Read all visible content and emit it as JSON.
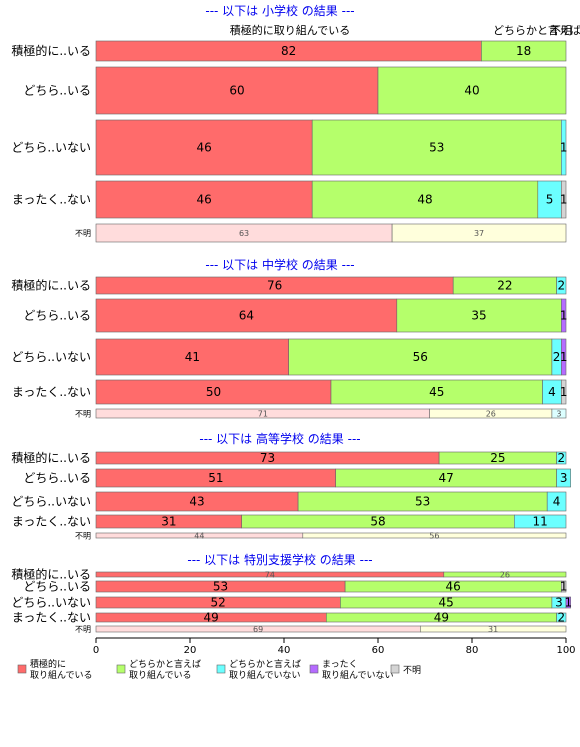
{
  "chart_data": {
    "type": "bar",
    "orientation": "horizontal-stacked-100",
    "x_ticks": [
      "0",
      "20",
      "40",
      "60",
      "80",
      "100"
    ],
    "xlim": [
      0,
      100
    ],
    "legend_position": "bottom",
    "column_headers": [
      "積極的に取り組んでいる",
      "どちらかと言えば",
      "不明"
    ],
    "colors": {
      "s1": "#ff6b6b",
      "s2": "#b5ff6b",
      "s3": "#6bffff",
      "s4": "#b56bff",
      "s5": "#d4d4d4",
      "unk1": "#ffdcdc",
      "unk2": "#ffffdc",
      "unk3": "#dcffff"
    },
    "legend": [
      {
        "key": "s1",
        "label": [
          "積極的に",
          "取り組んでいる"
        ]
      },
      {
        "key": "s2",
        "label": [
          "どちらかと言えば",
          "取り組んでいる"
        ]
      },
      {
        "key": "s3",
        "label": [
          "どちらかと言えば",
          "取り組んでいない"
        ]
      },
      {
        "key": "s4",
        "label": [
          "まったく",
          "取り組んでいない"
        ]
      },
      {
        "key": "s5",
        "label": [
          "不明"
        ]
      }
    ],
    "panels": [
      {
        "title": "--- 以下は 小学校 の結果 ---",
        "rows": [
          {
            "label": "積極的に..いる",
            "values": [
              82,
              18,
              0,
              0,
              0
            ]
          },
          {
            "label": "どちら..いる",
            "values": [
              60,
              40,
              0,
              0,
              0
            ]
          },
          {
            "label": "どちら..いない",
            "values": [
              46,
              53,
              1,
              0,
              0
            ]
          },
          {
            "label": "まったく..ない",
            "values": [
              46,
              48,
              5,
              0,
              1
            ]
          },
          {
            "label": "不明",
            "values": [
              63,
              37,
              0
            ],
            "unknown": true
          }
        ]
      },
      {
        "title": "--- 以下は 中学校 の結果 ---",
        "rows": [
          {
            "label": "積極的に..いる",
            "values": [
              76,
              22,
              2,
              0,
              0
            ]
          },
          {
            "label": "どちら..いる",
            "values": [
              64,
              35,
              0,
              1,
              0
            ]
          },
          {
            "label": "どちら..いない",
            "values": [
              41,
              56,
              2,
              1,
              0
            ]
          },
          {
            "label": "まったく..ない",
            "values": [
              50,
              45,
              4,
              0,
              1
            ]
          },
          {
            "label": "不明",
            "values": [
              71,
              26,
              3
            ],
            "unknown": true
          }
        ]
      },
      {
        "title": "--- 以下は 高等学校 の結果 ---",
        "rows": [
          {
            "label": "積極的に..いる",
            "values": [
              73,
              25,
              2,
              0,
              0
            ]
          },
          {
            "label": "どちら..いる",
            "values": [
              51,
              47,
              3,
              0,
              0
            ]
          },
          {
            "label": "どちら..いない",
            "values": [
              43,
              53,
              4,
              0,
              0
            ]
          },
          {
            "label": "まったく..ない",
            "values": [
              31,
              58,
              11,
              0,
              0
            ]
          },
          {
            "label": "不明",
            "values": [
              44,
              56,
              0
            ],
            "unknown": true
          }
        ]
      },
      {
        "title": "--- 以下は 特別支援学校 の結果 ---",
        "rows": [
          {
            "label": "積極的に..いる",
            "values": [
              74,
              26,
              0,
              0,
              0
            ]
          },
          {
            "label": "どちら..いる",
            "values": [
              53,
              46,
              0,
              0,
              1
            ]
          },
          {
            "label": "どちら..いない",
            "values": [
              52,
              45,
              3,
              1,
              0
            ]
          },
          {
            "label": "まったく..ない",
            "values": [
              49,
              49,
              2,
              0,
              0
            ]
          },
          {
            "label": "不明",
            "values": [
              69,
              31,
              0
            ],
            "unknown": true
          }
        ]
      }
    ]
  }
}
